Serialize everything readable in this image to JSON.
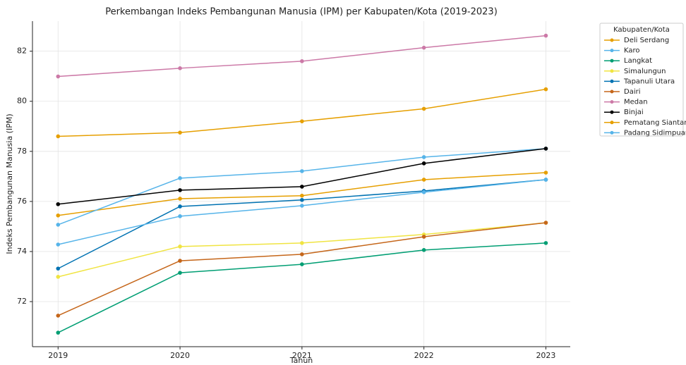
{
  "chart_data": {
    "type": "line",
    "title": "Perkembangan Indeks Pembangunan Manusia (IPM) per Kabupaten/Kota (2019-2023)",
    "x_label": "Tahun",
    "y_label": "Indeks Pembangunan Manusia (IPM)",
    "x": [
      2019,
      2020,
      2021,
      2022,
      2023
    ],
    "xlim": [
      2018.79,
      2023.2
    ],
    "xticks": [
      2019,
      2020,
      2021,
      2022,
      2023
    ],
    "ylim": [
      70.2,
      83.2
    ],
    "yticks": [
      72,
      74,
      76,
      78,
      80,
      82
    ],
    "grid": true,
    "legend_title": "Kabupaten/Kota",
    "legend_position": "outside-upper-right",
    "series": [
      {
        "name": "Deli Serdang",
        "color": "#e69f00",
        "values": [
          75.44,
          76.11,
          76.23,
          76.87,
          77.15
        ]
      },
      {
        "name": "Karo",
        "color": "#56b4e9",
        "values": [
          75.07,
          76.93,
          77.21,
          77.77,
          78.11
        ]
      },
      {
        "name": "Langkat",
        "color": "#009e73",
        "values": [
          70.76,
          73.15,
          73.49,
          74.06,
          74.34
        ]
      },
      {
        "name": "Simalungun",
        "color": "#f0e442",
        "values": [
          72.99,
          74.2,
          74.34,
          74.68,
          75.15
        ]
      },
      {
        "name": "Tapanuli Utara",
        "color": "#0072b2",
        "values": [
          73.32,
          75.8,
          76.06,
          76.42,
          76.87
        ]
      },
      {
        "name": "Dairi",
        "color": "#c5661a",
        "values": [
          71.44,
          73.63,
          73.89,
          74.59,
          75.15
        ]
      },
      {
        "name": "Medan",
        "color": "#cc79a7",
        "values": [
          80.99,
          81.32,
          81.6,
          82.14,
          82.62
        ]
      },
      {
        "name": "Binjai",
        "color": "#000000",
        "values": [
          75.89,
          76.45,
          76.59,
          77.52,
          78.11
        ]
      },
      {
        "name": "Pematang Siantar",
        "color": "#e69f00",
        "values": [
          78.6,
          78.75,
          79.2,
          79.7,
          80.48
        ]
      },
      {
        "name": "Padang Sidimpuan",
        "color": "#56b4e9",
        "values": [
          74.28,
          75.41,
          75.83,
          76.37,
          76.87
        ]
      }
    ]
  }
}
